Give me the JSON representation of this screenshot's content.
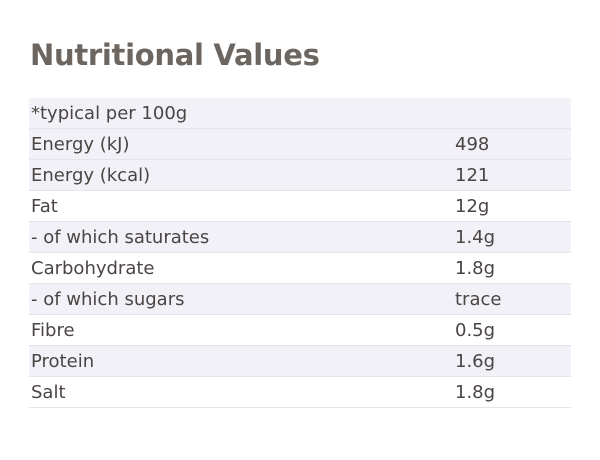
{
  "title": "Nutritional Values",
  "table": {
    "header": "*typical per 100g",
    "rows": [
      {
        "label": "Energy (kJ)",
        "value": "498"
      },
      {
        "label": "Energy (kcal)",
        "value": "121"
      },
      {
        "label": "Fat",
        "value": "12g"
      },
      {
        "label": "- of which saturates",
        "value": "1.4g"
      },
      {
        "label": "Carbohydrate",
        "value": "1.8g"
      },
      {
        "label": "- of which sugars",
        "value": "trace"
      },
      {
        "label": "Fibre",
        "value": "0.5g"
      },
      {
        "label": "Protein",
        "value": "1.6g"
      },
      {
        "label": "Salt",
        "value": "1.8g"
      }
    ]
  },
  "colors": {
    "title": "#6d6660",
    "text": "#4a4543",
    "shaded_row": "#f1f1f7",
    "divider": "#e4e4ea"
  }
}
